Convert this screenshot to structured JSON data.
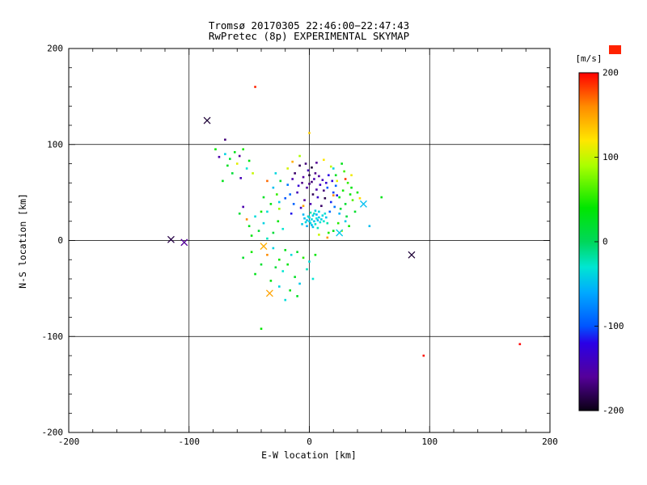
{
  "chart_data": {
    "type": "scatter",
    "title": "Tromsø 20170305 22:46:00−22:47:43",
    "subtitle": "RwPretec (8p) EXPERIMENTAL SKYMAP",
    "xlabel": "E-W location [km]",
    "ylabel": "N-S location [km]",
    "xlim": [
      -200,
      200
    ],
    "ylim": [
      -200,
      200
    ],
    "xticks": [
      -200,
      -100,
      0,
      100,
      200
    ],
    "yticks": [
      -200,
      -100,
      0,
      100,
      200
    ],
    "grid_km": [
      -100,
      0,
      100
    ],
    "colorbar": {
      "label": "[m/s]",
      "label_color": "#ff5500",
      "swatch_color": "#ff2200",
      "min": -200,
      "max": 200,
      "ticks": [
        200,
        100,
        0,
        -100,
        -200
      ],
      "stops": [
        [
          -200,
          "#0a0014"
        ],
        [
          -160,
          "#55009a"
        ],
        [
          -120,
          "#2a00e6"
        ],
        [
          -100,
          "#0055ff"
        ],
        [
          -60,
          "#00aaff"
        ],
        [
          -30,
          "#00e6d2"
        ],
        [
          0,
          "#00d75a"
        ],
        [
          40,
          "#00e600"
        ],
        [
          90,
          "#aaff00"
        ],
        [
          120,
          "#ffe600"
        ],
        [
          160,
          "#ff8c00"
        ],
        [
          200,
          "#ff0000"
        ]
      ]
    },
    "points": [
      [
        -8,
        78,
        -180
      ],
      [
        -3,
        80,
        -170
      ],
      [
        2,
        76,
        -190
      ],
      [
        6,
        81,
        -160
      ],
      [
        -12,
        70,
        -175
      ],
      [
        0,
        68,
        -185
      ],
      [
        4,
        64,
        -150
      ],
      [
        -6,
        60,
        -165
      ],
      [
        9,
        58,
        -140
      ],
      [
        -2,
        55,
        -155
      ],
      [
        12,
        52,
        -170
      ],
      [
        -10,
        50,
        -145
      ],
      [
        3,
        48,
        -180
      ],
      [
        7,
        45,
        -135
      ],
      [
        -4,
        42,
        -160
      ],
      [
        1,
        38,
        -150
      ],
      [
        10,
        36,
        -175
      ],
      [
        -7,
        34,
        -140
      ],
      [
        14,
        60,
        -130
      ],
      [
        -14,
        64,
        -150
      ],
      [
        5,
        70,
        -165
      ],
      [
        -1,
        73,
        -145
      ],
      [
        8,
        67,
        -155
      ],
      [
        13,
        44,
        -185
      ],
      [
        -9,
        57,
        -130
      ],
      [
        2,
        61,
        -172
      ],
      [
        -5,
        66,
        -158
      ],
      [
        11,
        63,
        -142
      ],
      [
        0,
        59,
        -168
      ],
      [
        6,
        53,
        -152
      ],
      [
        15,
        55,
        -100
      ],
      [
        -16,
        48,
        -90
      ],
      [
        18,
        40,
        -110
      ],
      [
        -13,
        38,
        -95
      ],
      [
        16,
        68,
        -120
      ],
      [
        -18,
        58,
        -85
      ],
      [
        20,
        50,
        -105
      ],
      [
        17,
        30,
        -90
      ],
      [
        -15,
        28,
        -115
      ],
      [
        19,
        62,
        -125
      ],
      [
        22,
        57,
        -95
      ],
      [
        -20,
        44,
        -100
      ],
      [
        21,
        35,
        -85
      ],
      [
        23,
        47,
        -118
      ],
      [
        0,
        24,
        -40
      ],
      [
        2,
        22,
        -35
      ],
      [
        4,
        20,
        -45
      ],
      [
        6,
        23,
        -30
      ],
      [
        -2,
        21,
        -50
      ],
      [
        1,
        18,
        -38
      ],
      [
        3,
        26,
        -42
      ],
      [
        5,
        17,
        -28
      ],
      [
        7,
        21,
        -55
      ],
      [
        -1,
        25,
        -33
      ],
      [
        8,
        24,
        -47
      ],
      [
        -3,
        19,
        -36
      ],
      [
        2,
        16,
        -52
      ],
      [
        4,
        28,
        -25
      ],
      [
        0,
        20,
        -44
      ],
      [
        6,
        27,
        -58
      ],
      [
        9,
        19,
        -31
      ],
      [
        -4,
        23,
        -49
      ],
      [
        10,
        22,
        -40
      ],
      [
        1,
        29,
        -22
      ],
      [
        11,
        26,
        -37
      ],
      [
        -5,
        27,
        -53
      ],
      [
        12,
        20,
        -29
      ],
      [
        3,
        14,
        -46
      ],
      [
        5,
        31,
        -41
      ],
      [
        13,
        28,
        -34
      ],
      [
        -2,
        15,
        -57
      ],
      [
        7,
        13,
        -26
      ],
      [
        14,
        24,
        -48
      ],
      [
        8,
        30,
        -39
      ],
      [
        15,
        18,
        -20
      ],
      [
        -6,
        17,
        -43
      ],
      [
        -25,
        40,
        -45
      ],
      [
        -30,
        55,
        -50
      ],
      [
        -35,
        30,
        -35
      ],
      [
        20,
        75,
        -40
      ],
      [
        25,
        28,
        -55
      ],
      [
        -22,
        12,
        -30
      ],
      [
        30,
        20,
        -45
      ],
      [
        -28,
        70,
        -38
      ],
      [
        25,
        45,
        30
      ],
      [
        28,
        52,
        45
      ],
      [
        30,
        38,
        20
      ],
      [
        32,
        60,
        55
      ],
      [
        26,
        33,
        15
      ],
      [
        34,
        48,
        40
      ],
      [
        22,
        68,
        25
      ],
      [
        29,
        72,
        60
      ],
      [
        35,
        55,
        35
      ],
      [
        24,
        18,
        50
      ],
      [
        31,
        25,
        10
      ],
      [
        36,
        42,
        65
      ],
      [
        27,
        80,
        30
      ],
      [
        33,
        15,
        45
      ],
      [
        -24,
        62,
        20
      ],
      [
        -27,
        48,
        55
      ],
      [
        -32,
        38,
        35
      ],
      [
        -38,
        45,
        25
      ],
      [
        -26,
        20,
        40
      ],
      [
        20,
        10,
        30
      ],
      [
        16,
        8,
        50
      ],
      [
        38,
        30,
        20
      ],
      [
        40,
        50,
        45
      ],
      [
        -30,
        8,
        15
      ],
      [
        18,
        77,
        100
      ],
      [
        23,
        62,
        110
      ],
      [
        -8,
        88,
        90
      ],
      [
        12,
        84,
        120
      ],
      [
        27,
        10,
        95
      ],
      [
        -18,
        75,
        105
      ],
      [
        35,
        68,
        115
      ],
      [
        -25,
        33,
        85
      ],
      [
        8,
        6,
        100
      ],
      [
        42,
        44,
        125
      ],
      [
        -5,
        36,
        150
      ],
      [
        20,
        47,
        160
      ],
      [
        -14,
        82,
        145
      ],
      [
        30,
        64,
        185
      ],
      [
        15,
        3,
        155
      ],
      [
        -35,
        62,
        170
      ],
      [
        -62,
        92,
        30
      ],
      [
        -58,
        88,
        -160
      ],
      [
        -66,
        85,
        20
      ],
      [
        -70,
        90,
        -40
      ],
      [
        -55,
        95,
        45
      ],
      [
        -60,
        80,
        110
      ],
      [
        -75,
        87,
        -150
      ],
      [
        -50,
        83,
        35
      ],
      [
        -68,
        78,
        25
      ],
      [
        -52,
        75,
        -30
      ],
      [
        -78,
        95,
        40
      ],
      [
        -64,
        70,
        15
      ],
      [
        -57,
        65,
        -145
      ],
      [
        -72,
        62,
        30
      ],
      [
        -47,
        70,
        100
      ],
      [
        -45,
        25,
        -35
      ],
      [
        -50,
        15,
        30
      ],
      [
        -40,
        30,
        45
      ],
      [
        -55,
        35,
        -150
      ],
      [
        -42,
        10,
        20
      ],
      [
        -38,
        18,
        -40
      ],
      [
        -48,
        5,
        35
      ],
      [
        -58,
        28,
        15
      ],
      [
        -35,
        2,
        -25
      ],
      [
        -52,
        22,
        160
      ],
      [
        -20,
        -10,
        30
      ],
      [
        -15,
        -15,
        -35
      ],
      [
        -25,
        -20,
        45
      ],
      [
        -10,
        -12,
        20
      ],
      [
        -30,
        -8,
        -40
      ],
      [
        -18,
        -25,
        35
      ],
      [
        -5,
        -18,
        50
      ],
      [
        -22,
        -32,
        -30
      ],
      [
        -12,
        -38,
        25
      ],
      [
        -28,
        -28,
        15
      ],
      [
        -8,
        -45,
        -45
      ],
      [
        -16,
        -52,
        30
      ],
      [
        -35,
        -15,
        160
      ],
      [
        -40,
        -25,
        20
      ],
      [
        0,
        -22,
        -35
      ],
      [
        5,
        -15,
        40
      ],
      [
        -2,
        -30,
        -25
      ],
      [
        -45,
        -35,
        30
      ],
      [
        -25,
        -48,
        -40
      ],
      [
        -10,
        -58,
        25
      ],
      [
        -32,
        -42,
        35
      ],
      [
        3,
        -40,
        -30
      ],
      [
        -48,
        -12,
        45
      ],
      [
        -55,
        -18,
        20
      ],
      [
        -20,
        -62,
        -35
      ],
      [
        -45,
        160,
        190
      ],
      [
        95,
        -120,
        195
      ],
      [
        175,
        -108,
        200
      ],
      [
        0,
        112,
        130
      ],
      [
        -40,
        -92,
        40
      ],
      [
        50,
        15,
        -50
      ],
      [
        60,
        45,
        30
      ],
      [
        -70,
        105,
        -170
      ]
    ],
    "x_markers": [
      [
        -85,
        125,
        -190
      ],
      [
        -115,
        1,
        -185
      ],
      [
        -104,
        -2,
        -160
      ],
      [
        85,
        -15,
        -190
      ],
      [
        45,
        38,
        -50
      ],
      [
        -33,
        -55,
        150
      ],
      [
        -38,
        -6,
        145
      ],
      [
        25,
        8,
        -45
      ]
    ]
  }
}
